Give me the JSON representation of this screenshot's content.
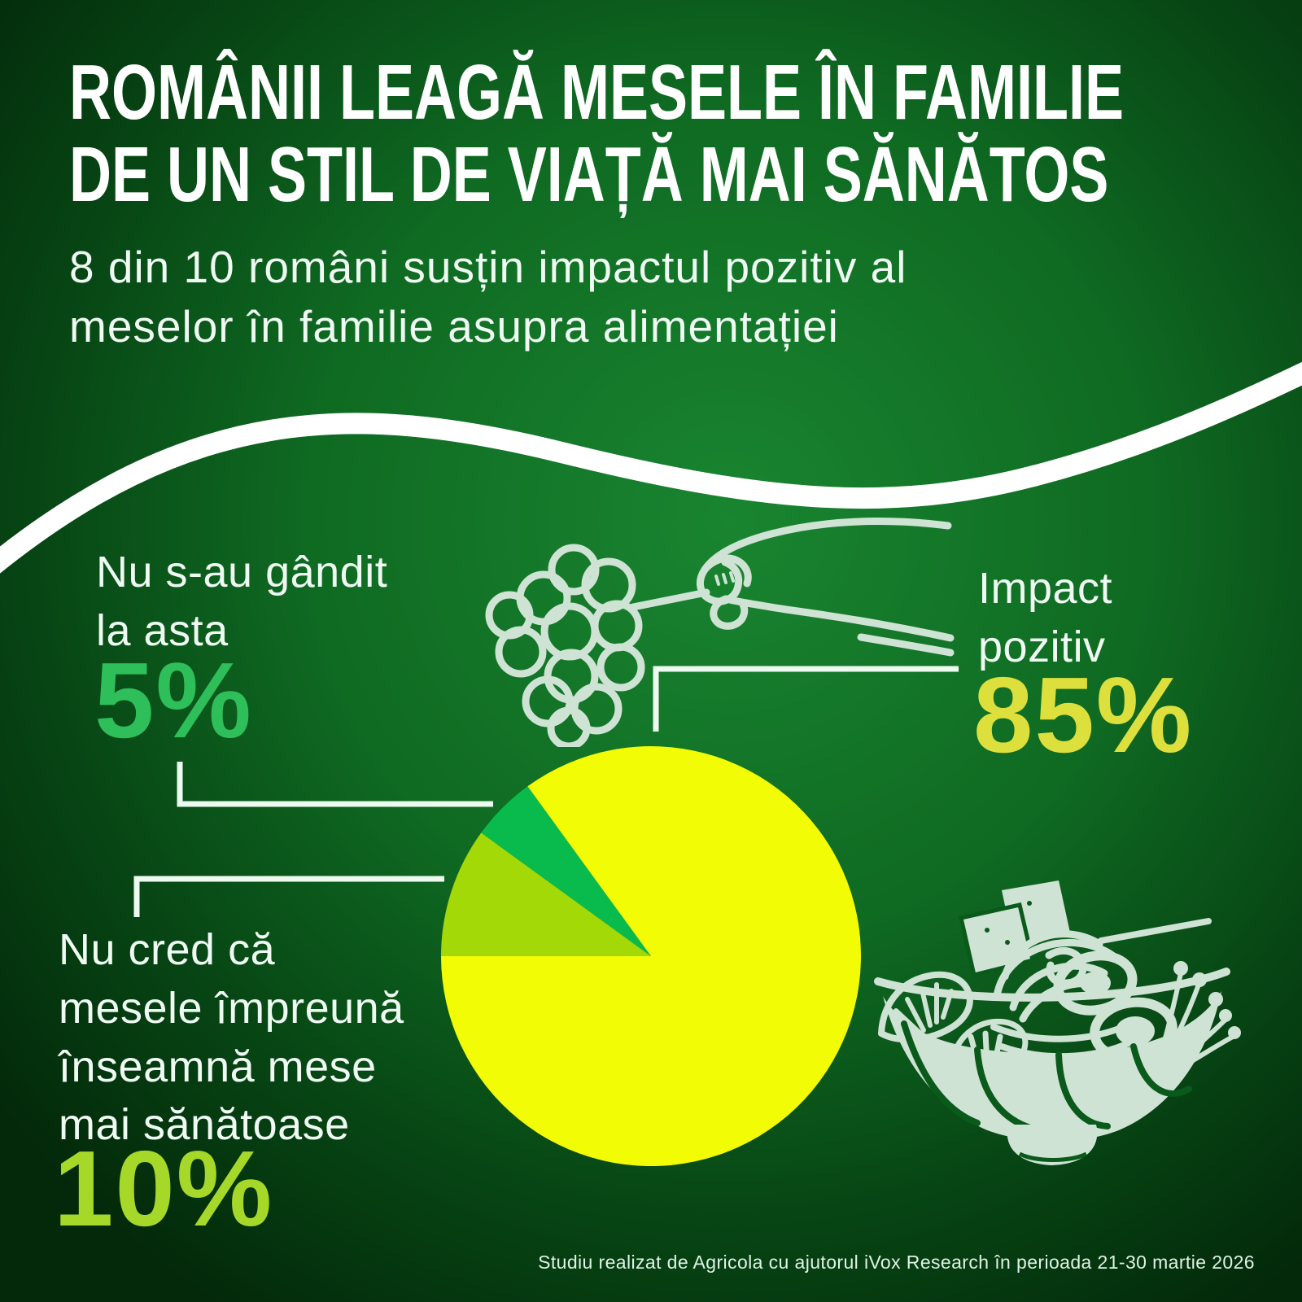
{
  "title": {
    "line1": "ROMÂNII LEAGĂ MESELE ÎN FAMILIE",
    "line2": "DE UN STIL DE VIAȚĂ MAI SĂNĂTOS"
  },
  "subtitle": {
    "line1": "8 din 10 români susțin impactul pozitiv al",
    "line2": "meselor în familie asupra alimentației"
  },
  "footer": "Studiu realizat de Agricola cu ajutorul iVox Research în perioada 21-30 martie 2026",
  "chart_data": {
    "type": "pie",
    "unit": "%",
    "start_angle_deg": 180,
    "direction": "clockwise",
    "legend_position": "callout-labels",
    "slices": [
      {
        "label": "Nu cred că mesele împreună înseamnă mese mai sănătoase",
        "value": 10,
        "value_label": "10%",
        "color": "#a3d907"
      },
      {
        "label": "Nu s-au gândit la asta",
        "value": 5,
        "value_label": "5%",
        "color": "#09bb4d"
      },
      {
        "label": "Impact pozitiv",
        "value": 85,
        "value_label": "85%",
        "color": "#f2fc05"
      }
    ]
  },
  "callouts": {
    "not_thought": {
      "line1": "Nu s-au gândit",
      "line2": "la asta"
    },
    "positive": {
      "line1": "Impact",
      "line2": "pozitiv"
    },
    "dont_believe": {
      "line1": "Nu cred că",
      "line2": "mesele împreună",
      "line3": "înseamnă mese",
      "line4": "mai sănătoase"
    }
  },
  "icons": {
    "hand_grapes": "hand-grapes-illustration",
    "food_bowl": "food-bowl-illustration",
    "wave_divider": "wave-divider"
  },
  "colors": {
    "background_center": "#198530",
    "background_edge": "#03290a",
    "title_text": "#ffffff",
    "body_text": "#eefaf2",
    "footer_text": "#dff2e4",
    "divider_curve": "#ffffff",
    "connector_line": "#edfaf0",
    "pct_5": "#2ebf5a",
    "pct_85": "#dde03c",
    "pct_10": "#a6d829",
    "illustration": "#cfe3d4",
    "illustration_detail": "#0a5a1b",
    "pie_yellow": "#f2fc05",
    "pie_green": "#09bb4d",
    "pie_light_green": "#a3d907"
  }
}
